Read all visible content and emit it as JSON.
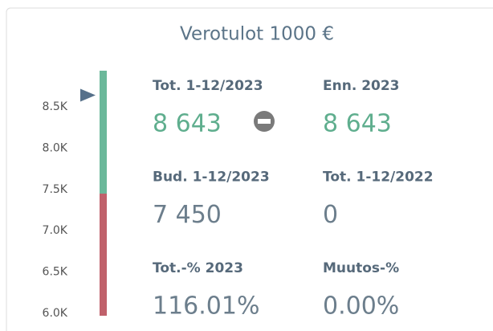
{
  "title": "Verotulot 1000 €",
  "chart": {
    "ylim": [
      5970,
      8940
    ],
    "yticks": [
      {
        "value": 6000,
        "label": "6.0K"
      },
      {
        "value": 6500,
        "label": "6.5K"
      },
      {
        "value": 7000,
        "label": "7.0K"
      },
      {
        "value": 7500,
        "label": "7.5K"
      },
      {
        "value": 8000,
        "label": "8.0K"
      },
      {
        "value": 8500,
        "label": "8.5K"
      }
    ],
    "threshold": 7450,
    "marker": 8643,
    "colors": {
      "above": "#6bb89a",
      "below": "#c0616b",
      "marker": "#56708a"
    }
  },
  "kpis": [
    {
      "label": "Tot. 1-12/2023",
      "value": "8 643",
      "color": "#5fae8e",
      "icon": true
    },
    {
      "label": "Enn. 2023",
      "value": "8 643",
      "color": "#5fae8e"
    },
    {
      "label": "Bud. 1-12/2023",
      "value": "7 450",
      "color": "#6c7e8c"
    },
    {
      "label": "Tot. 1-12/2022",
      "value": "0",
      "color": "#6c7e8c"
    },
    {
      "label": "Tot.-% 2023",
      "value": "116.01%",
      "color": "#6c7e8c"
    },
    {
      "label": "Muutos-%",
      "value": "0.00%",
      "color": "#6c7e8c"
    }
  ]
}
